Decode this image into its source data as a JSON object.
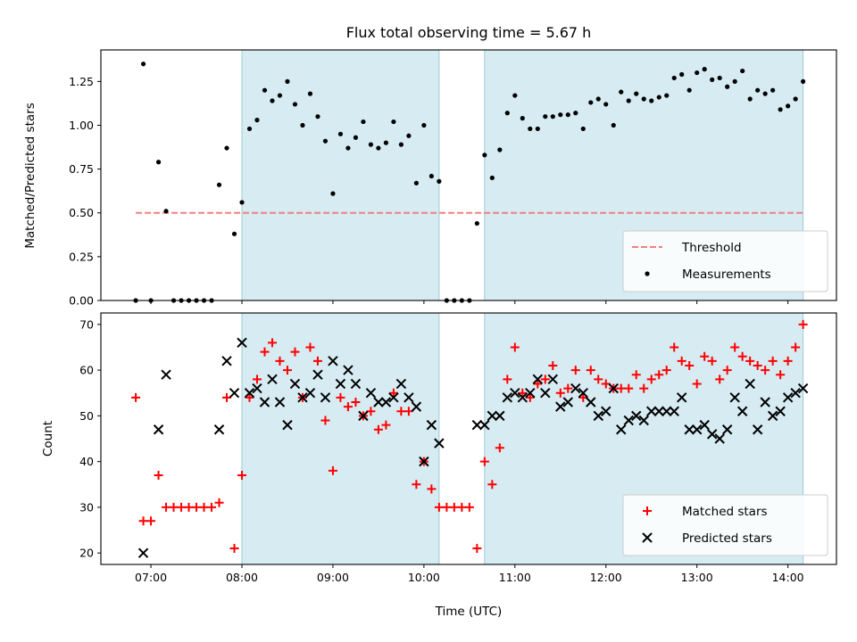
{
  "chart_data": [
    {
      "type": "scatter",
      "title": "Flux total observing time = 5.67 h",
      "ylabel": "Matched/Predicted stars",
      "xlim": [
        "06:27",
        "14:32"
      ],
      "ylim": [
        0,
        1.43
      ],
      "yticks": [
        "0.00",
        "0.25",
        "0.50",
        "0.75",
        "1.00",
        "1.25"
      ],
      "shaded_intervals": [
        [
          "08:00",
          "10:10"
        ],
        [
          "10:40",
          "14:10"
        ]
      ],
      "threshold": {
        "name": "Threshold",
        "y": 0.5,
        "x_start": "06:50",
        "x_end": "14:10",
        "color": "#f08080"
      },
      "legend": {
        "position": "lower right",
        "entries": [
          "Threshold",
          "Measurements"
        ]
      },
      "series": [
        {
          "name": "Measurements",
          "color": "#000000",
          "x": [
            "06:50",
            "06:55",
            "07:00",
            "07:05",
            "07:10",
            "07:15",
            "07:20",
            "07:25",
            "07:30",
            "07:35",
            "07:40",
            "07:45",
            "07:50",
            "07:55",
            "08:00",
            "08:05",
            "08:10",
            "08:15",
            "08:20",
            "08:25",
            "08:30",
            "08:35",
            "08:40",
            "08:45",
            "08:50",
            "08:55",
            "09:00",
            "09:05",
            "09:10",
            "09:15",
            "09:20",
            "09:25",
            "09:30",
            "09:35",
            "09:40",
            "09:45",
            "09:50",
            "09:55",
            "10:00",
            "10:05",
            "10:10",
            "10:15",
            "10:20",
            "10:25",
            "10:30",
            "10:35",
            "10:40",
            "10:45",
            "10:50",
            "10:55",
            "11:00",
            "11:05",
            "11:10",
            "11:15",
            "11:20",
            "11:25",
            "11:30",
            "11:35",
            "11:40",
            "11:45",
            "11:50",
            "11:55",
            "12:00",
            "12:05",
            "12:10",
            "12:15",
            "12:20",
            "12:25",
            "12:30",
            "12:35",
            "12:40",
            "12:45",
            "12:50",
            "12:55",
            "13:00",
            "13:05",
            "13:10",
            "13:15",
            "13:20",
            "13:25",
            "13:30",
            "13:35",
            "13:40",
            "13:45",
            "13:50",
            "13:55",
            "14:00",
            "14:05",
            "14:10"
          ],
          "y": [
            0.0,
            1.35,
            0.0,
            0.79,
            0.51,
            0.0,
            0.0,
            0.0,
            0.0,
            0.0,
            0.0,
            0.66,
            0.87,
            0.38,
            0.56,
            0.98,
            1.03,
            1.2,
            1.14,
            1.17,
            1.25,
            1.12,
            1.0,
            1.18,
            1.05,
            0.91,
            0.61,
            0.95,
            0.87,
            0.93,
            1.02,
            0.89,
            0.87,
            0.9,
            1.02,
            0.89,
            0.94,
            0.67,
            1.0,
            0.71,
            0.68,
            0.0,
            0.0,
            0.0,
            0.0,
            0.44,
            0.83,
            0.7,
            0.86,
            1.07,
            1.17,
            1.04,
            0.98,
            0.98,
            1.05,
            1.05,
            1.06,
            1.06,
            1.07,
            0.98,
            1.13,
            1.15,
            1.12,
            1.0,
            1.19,
            1.14,
            1.18,
            1.15,
            1.14,
            1.16,
            1.17,
            1.27,
            1.29,
            1.2,
            1.3,
            1.32,
            1.26,
            1.27,
            1.22,
            1.25,
            1.31,
            1.15,
            1.2,
            1.18,
            1.2,
            1.09,
            1.11,
            1.15,
            1.25
          ]
        }
      ]
    },
    {
      "type": "scatter",
      "xlabel": "Time (UTC)",
      "ylabel": "Count",
      "xlim": [
        "06:27",
        "14:32"
      ],
      "ylim": [
        17.5,
        72.5
      ],
      "yticks": [
        "20",
        "30",
        "40",
        "50",
        "60",
        "70"
      ],
      "xticks": [
        "07:00",
        "08:00",
        "09:00",
        "10:00",
        "11:00",
        "12:00",
        "13:00",
        "14:00"
      ],
      "shaded_intervals": [
        [
          "08:00",
          "10:10"
        ],
        [
          "10:40",
          "14:10"
        ]
      ],
      "legend": {
        "position": "lower right",
        "entries": [
          "Matched stars",
          "Predicted stars"
        ]
      },
      "series": [
        {
          "name": "Matched stars",
          "marker": "+",
          "color": "#ff0000",
          "x": [
            "06:50",
            "06:55",
            "07:00",
            "07:05",
            "07:10",
            "07:15",
            "07:20",
            "07:25",
            "07:30",
            "07:35",
            "07:40",
            "07:45",
            "07:50",
            "07:55",
            "08:00",
            "08:05",
            "08:10",
            "08:15",
            "08:20",
            "08:25",
            "08:30",
            "08:35",
            "08:40",
            "08:45",
            "08:50",
            "08:55",
            "09:00",
            "09:05",
            "09:10",
            "09:15",
            "09:20",
            "09:25",
            "09:30",
            "09:35",
            "09:40",
            "09:45",
            "09:50",
            "09:55",
            "10:00",
            "10:05",
            "10:10",
            "10:15",
            "10:20",
            "10:25",
            "10:30",
            "10:35",
            "10:40",
            "10:45",
            "10:50",
            "10:55",
            "11:00",
            "11:05",
            "11:10",
            "11:15",
            "11:20",
            "11:25",
            "11:30",
            "11:35",
            "11:40",
            "11:45",
            "11:50",
            "11:55",
            "12:00",
            "12:05",
            "12:10",
            "12:15",
            "12:20",
            "12:25",
            "12:30",
            "12:35",
            "12:40",
            "12:45",
            "12:50",
            "12:55",
            "13:00",
            "13:05",
            "13:10",
            "13:15",
            "13:20",
            "13:25",
            "13:30",
            "13:35",
            "13:40",
            "13:45",
            "13:50",
            "13:55",
            "14:00",
            "14:05",
            "14:10"
          ],
          "y": [
            54,
            27,
            27,
            37,
            30,
            30,
            30,
            30,
            30,
            30,
            30,
            31,
            54,
            21,
            37,
            54,
            58,
            64,
            66,
            62,
            60,
            64,
            54,
            65,
            62,
            49,
            38,
            54,
            52,
            53,
            50,
            51,
            47,
            48,
            55,
            51,
            51,
            35,
            40,
            34,
            30,
            30,
            30,
            30,
            30,
            21,
            40,
            35,
            43,
            58,
            65,
            55,
            54,
            57,
            58,
            61,
            55,
            56,
            60,
            54,
            60,
            58,
            57,
            56,
            56,
            56,
            59,
            56,
            58,
            59,
            60,
            65,
            62,
            61,
            57,
            63,
            62,
            58,
            60,
            65,
            63,
            62,
            61,
            60,
            62,
            59,
            62,
            65,
            70
          ]
        },
        {
          "name": "Predicted stars",
          "marker": "x",
          "color": "#000000",
          "x": [
            "06:55",
            "07:05",
            "07:10",
            "07:45",
            "07:50",
            "07:55",
            "08:00",
            "08:05",
            "08:10",
            "08:15",
            "08:20",
            "08:25",
            "08:30",
            "08:35",
            "08:40",
            "08:45",
            "08:50",
            "08:55",
            "09:00",
            "09:05",
            "09:10",
            "09:15",
            "09:20",
            "09:25",
            "09:30",
            "09:35",
            "09:40",
            "09:45",
            "09:50",
            "09:55",
            "10:00",
            "10:05",
            "10:10",
            "10:35",
            "10:40",
            "10:45",
            "10:50",
            "10:55",
            "11:00",
            "11:05",
            "11:10",
            "11:15",
            "11:20",
            "11:25",
            "11:30",
            "11:35",
            "11:40",
            "11:45",
            "11:50",
            "11:55",
            "12:00",
            "12:05",
            "12:10",
            "12:15",
            "12:20",
            "12:25",
            "12:30",
            "12:35",
            "12:40",
            "12:45",
            "12:50",
            "12:55",
            "13:00",
            "13:05",
            "13:10",
            "13:15",
            "13:20",
            "13:25",
            "13:30",
            "13:35",
            "13:40",
            "13:45",
            "13:50",
            "13:55",
            "14:00",
            "14:05",
            "14:10"
          ],
          "y": [
            20,
            47,
            59,
            47,
            62,
            55,
            66,
            55,
            56,
            53,
            58,
            53,
            48,
            57,
            54,
            55,
            59,
            54,
            62,
            57,
            60,
            57,
            50,
            55,
            53,
            53,
            54,
            57,
            54,
            52,
            40,
            48,
            44,
            48,
            48,
            50,
            50,
            54,
            55,
            54,
            55,
            58,
            55,
            58,
            52,
            53,
            56,
            55,
            53,
            50,
            51,
            56,
            47,
            49,
            50,
            49,
            51,
            51,
            51,
            51,
            54,
            47,
            47,
            48,
            46,
            45,
            47,
            54,
            51,
            57,
            47,
            53,
            50,
            51,
            54,
            55,
            56
          ]
        }
      ]
    }
  ]
}
